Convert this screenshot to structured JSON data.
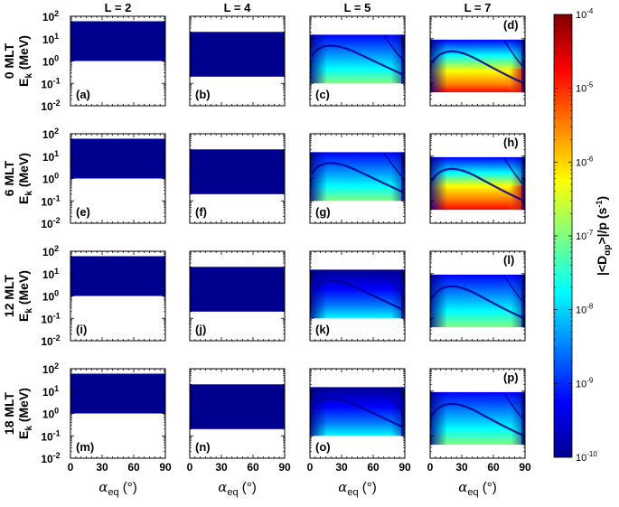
{
  "colormap": [
    "#00008f",
    "#0000ff",
    "#0080ff",
    "#00ffff",
    "#80ff80",
    "#ffff00",
    "#ff8000",
    "#ff0000",
    "#800000"
  ],
  "chart_data": {
    "type": "heatmap",
    "layout": {
      "rows": 4,
      "cols": 4
    },
    "columns": [
      {
        "title": "L = 2",
        "L": 2
      },
      {
        "title": "L = 4",
        "L": 4
      },
      {
        "title": "L = 5",
        "L": 5
      },
      {
        "title": "L = 7",
        "L": 7
      }
    ],
    "rows": [
      {
        "label": "0 MLT",
        "mlt": 0
      },
      {
        "label": "6 MLT",
        "mlt": 6
      },
      {
        "label": "12 MLT",
        "mlt": 12
      },
      {
        "label": "18 MLT",
        "mlt": 18
      }
    ],
    "panel_labels": [
      "(a)",
      "(b)",
      "(c)",
      "(d)",
      "(e)",
      "(f)",
      "(g)",
      "(h)",
      "(i)",
      "(j)",
      "(k)",
      "(l)",
      "(m)",
      "(n)",
      "(o)",
      "(p)"
    ],
    "xlabel_main": "α",
    "xlabel_sub": "eq",
    "xlabel_unit": " (°)",
    "ylabel_main": "E",
    "ylabel_sub": "k",
    "ylabel_unit": " (MeV)",
    "xlim": [
      0,
      90
    ],
    "xticks": [
      "0",
      "30",
      "60",
      "90"
    ],
    "ylim_log": [
      -2,
      2
    ],
    "yticks": [
      {
        "base": "10",
        "exp": "2"
      },
      {
        "base": "10",
        "exp": "1"
      },
      {
        "base": "10",
        "exp": "0"
      },
      {
        "base": "10",
        "exp": "-1"
      },
      {
        "base": "10",
        "exp": "-2"
      }
    ],
    "energy_range_mev": {
      "L2": [
        1.0,
        60
      ],
      "L4": [
        0.2,
        20
      ],
      "L5": [
        0.1,
        15
      ],
      "L7": [
        0.04,
        9
      ]
    },
    "colorbar": {
      "scale": "log",
      "range_log": [
        -10,
        -4
      ],
      "ticks": [
        {
          "base": "10",
          "exp": "-4"
        },
        {
          "base": "10",
          "exp": "-5"
        },
        {
          "base": "10",
          "exp": "-6"
        },
        {
          "base": "10",
          "exp": "-7"
        },
        {
          "base": "10",
          "exp": "-8"
        },
        {
          "base": "10",
          "exp": "-9"
        },
        {
          "base": "10",
          "exp": "-10"
        }
      ],
      "label_a": "|<D",
      "label_sub": "αp",
      "label_b": ">|/p (s",
      "label_sup": "-1",
      "label_c": ")"
    }
  }
}
